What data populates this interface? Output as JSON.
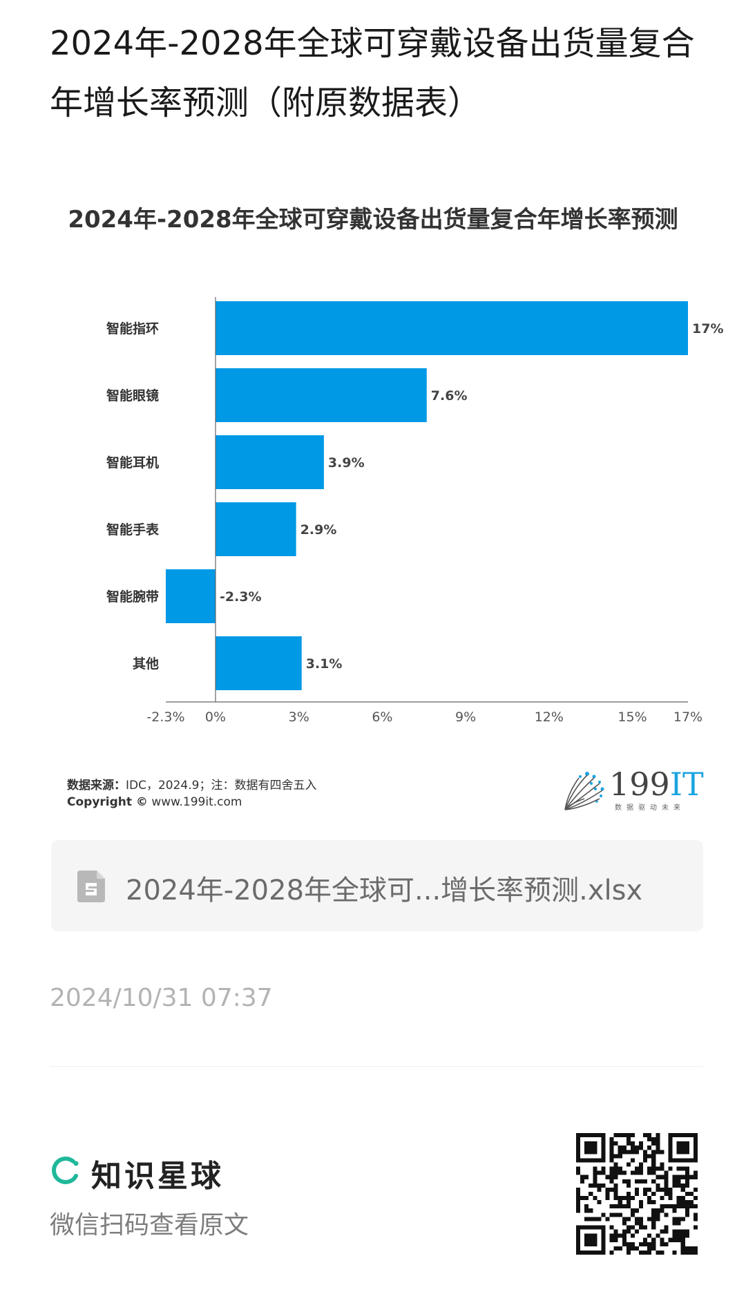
{
  "post": {
    "title": "2024年-2028年全球可穿戴设备出货量复合年增长率预测（附原数据表）"
  },
  "chart_data": {
    "type": "bar",
    "orientation": "horizontal",
    "title": "2024年-2028年全球可穿戴设备出货量复合年增长率预测",
    "categories": [
      "智能指环",
      "智能眼镜",
      "智能耳机",
      "智能手表",
      "智能腕带",
      "其他"
    ],
    "values": [
      17,
      7.6,
      3.9,
      2.9,
      -2.3,
      3.1
    ],
    "data_labels": [
      "17%",
      "7.6%",
      "3.9%",
      "2.9%",
      "-2.3%",
      "3.1%"
    ],
    "xlim": [
      -2.3,
      17
    ],
    "x_ticks": [
      -2.3,
      0,
      3,
      6,
      9,
      12,
      15,
      17
    ],
    "x_tick_labels": [
      "-2.3%",
      "0%",
      "3%",
      "6%",
      "9%",
      "12%",
      "15%",
      "17%"
    ],
    "bar_color": "#0099e6",
    "grid": false,
    "legend": "none"
  },
  "chart_footer": {
    "source_label": "数据来源：",
    "source_text": "IDC，2024.9；注：数据有四舍五入",
    "copyright_label": "Copyright ©",
    "copyright_text": " www.199it.com",
    "logo_text": "199",
    "logo_accent": "IT",
    "logo_tagline": "数据驱动未来"
  },
  "attachment": {
    "icon": "spreadsheet-file-icon",
    "file_name": "2024年-2028年全球可...增长率预测.xlsx"
  },
  "meta": {
    "timestamp": "2024/10/31 07:37"
  },
  "footer": {
    "brand_name": "知识星球",
    "brand_color": "#1fb89a",
    "scan_hint": "微信扫码查看原文"
  }
}
